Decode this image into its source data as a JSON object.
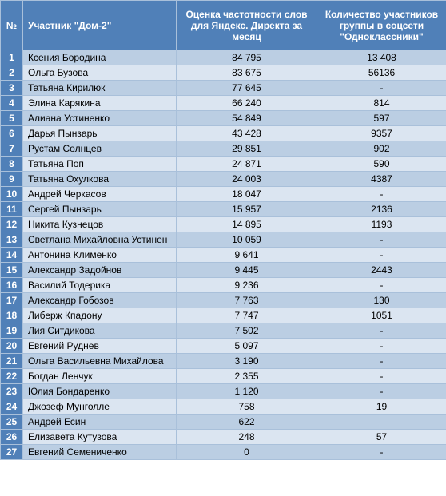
{
  "headers": {
    "num": "№",
    "name": "Участник \"Дом-2\"",
    "freq": "Оценка частотности слов для Яндекс. Директа за месяц",
    "ok": "Количество участников группы в соцсети \"Одноклассники\""
  },
  "rows": [
    {
      "n": "1",
      "name": "Ксения Бородина",
      "freq": "84 795",
      "ok": "13 408"
    },
    {
      "n": "2",
      "name": "Ольга Бузова",
      "freq": "83 675",
      "ok": "56136"
    },
    {
      "n": "3",
      "name": "Татьяна Кирилюк",
      "freq": "77 645",
      "ok": "-"
    },
    {
      "n": "4",
      "name": "Элина Карякина",
      "freq": "66 240",
      "ok": "814"
    },
    {
      "n": "5",
      "name": "Алиана Устиненко",
      "freq": "54 849",
      "ok": "597"
    },
    {
      "n": "6",
      "name": "Дарья Пынзарь",
      "freq": "43 428",
      "ok": "9357"
    },
    {
      "n": "7",
      "name": "Рустам Солнцев",
      "freq": "29 851",
      "ok": "902"
    },
    {
      "n": "8",
      "name": "Татьяна Поп",
      "freq": "24 871",
      "ok": "590"
    },
    {
      "n": "9",
      "name": "Татьяна Охулкова",
      "freq": "24 003",
      "ok": "4387"
    },
    {
      "n": "10",
      "name": "Андрей Черкасов",
      "freq": "18 047",
      "ok": "-"
    },
    {
      "n": "11",
      "name": "Сергей Пынзарь",
      "freq": "15 957",
      "ok": "2136"
    },
    {
      "n": "12",
      "name": "Никита Кузнецов",
      "freq": "14 895",
      "ok": "1193"
    },
    {
      "n": "13",
      "name": "Светлана Михайловна Устинен",
      "freq": "10 059",
      "ok": "-"
    },
    {
      "n": "14",
      "name": "Антонина Клименко",
      "freq": "9 641",
      "ok": "-"
    },
    {
      "n": "15",
      "name": "Александр Задойнов",
      "freq": "9 445",
      "ok": "2443"
    },
    {
      "n": "16",
      "name": "Василий Тодерика",
      "freq": "9 236",
      "ok": "-"
    },
    {
      "n": "17",
      "name": "Александр Гобозов",
      "freq": "7 763",
      "ok": "130"
    },
    {
      "n": "18",
      "name": "Либерж Кпадону",
      "freq": "7 747",
      "ok": "1051"
    },
    {
      "n": "19",
      "name": "Лия Ситдикова",
      "freq": "7 502",
      "ok": "-"
    },
    {
      "n": "20",
      "name": "Евгений Руднев",
      "freq": "5 097",
      "ok": "-"
    },
    {
      "n": "21",
      "name": "Ольга Васильевна Михайлова",
      "freq": "3 190",
      "ok": "-"
    },
    {
      "n": "22",
      "name": "Богдан Ленчук",
      "freq": "2 355",
      "ok": "-"
    },
    {
      "n": "23",
      "name": "Юлия Бондаренко",
      "freq": "1 120",
      "ok": "-"
    },
    {
      "n": "24",
      "name": "Джозеф Мунголле",
      "freq": "758",
      "ok": "19"
    },
    {
      "n": "25",
      "name": "Андрей Есин",
      "freq": "622",
      "ok": ""
    },
    {
      "n": "26",
      "name": "Елизавета Кутузова",
      "freq": "248",
      "ok": "57"
    },
    {
      "n": "27",
      "name": "Евгений Семениченко",
      "freq": "0",
      "ok": "-"
    }
  ]
}
